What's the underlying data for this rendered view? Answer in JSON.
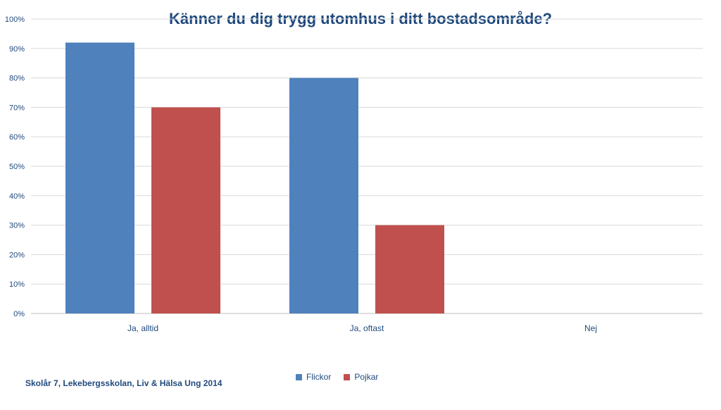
{
  "chart_data": {
    "type": "bar",
    "title": "Känner du dig trygg utomhus i ditt bostadsområde?",
    "categories": [
      "Ja, alltid",
      "Ja, oftast",
      "Nej"
    ],
    "series": [
      {
        "name": "Flickor",
        "values": [
          92,
          80,
          0
        ],
        "color": "#4f81bd"
      },
      {
        "name": "Pojkar",
        "values": [
          70,
          30,
          0
        ],
        "color": "#c0504d"
      }
    ],
    "ylim": [
      0,
      100
    ],
    "yticks": [
      "0%",
      "10%",
      "20%",
      "30%",
      "40%",
      "50%",
      "60%",
      "70%",
      "80%",
      "90%",
      "100%"
    ],
    "y_unit": "%",
    "grid": true,
    "legend_position": "bottom"
  },
  "footer": {
    "text": "Skolår 7, Lekebergsskolan, Liv & Hälsa Ung 2014"
  },
  "colors": {
    "title": "#1f497d",
    "axis_text": "#1f497d",
    "grid": "#d9d9d9"
  }
}
